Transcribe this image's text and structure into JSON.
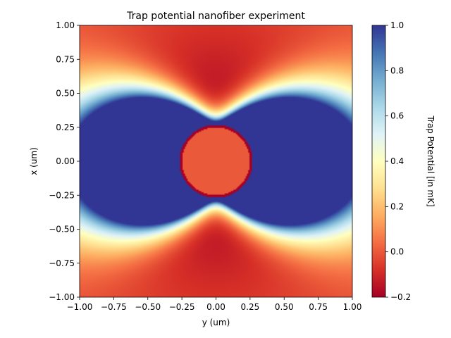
{
  "chart_data": {
    "type": "heatmap",
    "title": "Trap potential nanofiber experiment",
    "xlabel": "y (um)",
    "ylabel": "x (um)",
    "xlim": [
      -1.0,
      1.0
    ],
    "ylim": [
      -1.0,
      1.0
    ],
    "x_ticks": [
      "−1.00",
      "−0.75",
      "−0.50",
      "−0.25",
      "0.00",
      "0.25",
      "0.50",
      "0.75",
      "1.00"
    ],
    "y_ticks": [
      "1.00",
      "0.75",
      "0.50",
      "0.25",
      "0.00",
      "−0.25",
      "−0.50",
      "−0.75",
      "−1.00"
    ],
    "x_tick_values": [
      -1.0,
      -0.75,
      -0.5,
      -0.25,
      0.0,
      0.25,
      0.5,
      0.75,
      1.0
    ],
    "y_tick_values": [
      1.0,
      0.75,
      0.5,
      0.25,
      0.0,
      -0.25,
      -0.5,
      -0.75,
      -1.0
    ],
    "colorbar": {
      "label": "Trap Potential [in mK]",
      "range": [
        -0.2,
        1.0
      ],
      "colormap": "RdYlBu",
      "ticks": [
        "1.0",
        "0.8",
        "0.6",
        "0.4",
        "0.2",
        "0.0",
        "−0.2"
      ],
      "tick_values": [
        1.0,
        0.8,
        0.6,
        0.4,
        0.2,
        0.0,
        -0.2
      ]
    },
    "features": {
      "fiber_radius": 0.25,
      "fiber_interior_value": 0.0,
      "repulsive_lobes_centers": [
        [
          -0.25,
          0.0
        ],
        [
          0.25,
          0.0
        ]
      ],
      "repulsive_lobes_value": 1.0,
      "attractive_minima_centers": [
        [
          0.0,
          0.5
        ],
        [
          0.0,
          -0.5
        ]
      ],
      "attractive_minima_value": -0.2
    },
    "grid": false,
    "colors": {
      "low": "#a50026",
      "mid": "#ffffbf",
      "high": "#313695"
    }
  }
}
